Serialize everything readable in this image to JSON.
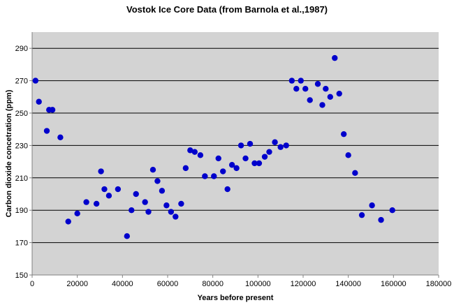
{
  "chart_data": {
    "type": "scatter",
    "title": "Vostok Ice Core Data (from Barnola et al.,1987)",
    "xlabel": "Years before present",
    "ylabel": "Carbon dioxide concetration (ppm)",
    "xlim": [
      0,
      180000
    ],
    "ylim": [
      150,
      300
    ],
    "xticks": [
      0,
      20000,
      40000,
      60000,
      80000,
      100000,
      120000,
      140000,
      160000,
      180000
    ],
    "yticks": [
      150,
      170,
      190,
      210,
      230,
      250,
      270,
      290
    ],
    "grid": "horizontal",
    "legend": "none",
    "plot_background": "#d3d3d3",
    "marker_color": "#0000cc",
    "gridline_color": "#000000",
    "series": [
      {
        "points": [
          [
            1500,
            270
          ],
          [
            3000,
            257
          ],
          [
            6500,
            239
          ],
          [
            7500,
            252
          ],
          [
            9000,
            252
          ],
          [
            12500,
            235
          ],
          [
            16000,
            183
          ],
          [
            20000,
            188
          ],
          [
            24000,
            195
          ],
          [
            28500,
            194
          ],
          [
            30500,
            214
          ],
          [
            32000,
            203
          ],
          [
            34000,
            199
          ],
          [
            38000,
            203
          ],
          [
            42000,
            174
          ],
          [
            44000,
            190
          ],
          [
            46000,
            200
          ],
          [
            50000,
            195
          ],
          [
            51500,
            189
          ],
          [
            53500,
            215
          ],
          [
            55500,
            208
          ],
          [
            57500,
            202
          ],
          [
            59500,
            193
          ],
          [
            61500,
            189
          ],
          [
            63500,
            186
          ],
          [
            66000,
            194
          ],
          [
            68000,
            216
          ],
          [
            70000,
            227
          ],
          [
            72000,
            226
          ],
          [
            74500,
            224
          ],
          [
            76500,
            211
          ],
          [
            80500,
            211
          ],
          [
            82500,
            222
          ],
          [
            84500,
            214
          ],
          [
            86500,
            203
          ],
          [
            88500,
            218
          ],
          [
            90500,
            216
          ],
          [
            92500,
            230
          ],
          [
            94500,
            222
          ],
          [
            96500,
            231
          ],
          [
            98500,
            219
          ],
          [
            100500,
            219
          ],
          [
            103000,
            223
          ],
          [
            105000,
            226
          ],
          [
            107500,
            232
          ],
          [
            110000,
            229
          ],
          [
            112500,
            230
          ],
          [
            115000,
            270
          ],
          [
            117000,
            265
          ],
          [
            119000,
            270
          ],
          [
            121000,
            265
          ],
          [
            123000,
            258
          ],
          [
            126500,
            268
          ],
          [
            128500,
            255
          ],
          [
            130000,
            265
          ],
          [
            132000,
            260
          ],
          [
            134000,
            284
          ],
          [
            136000,
            262
          ],
          [
            138000,
            237
          ],
          [
            140000,
            224
          ],
          [
            143000,
            213
          ],
          [
            146000,
            187
          ],
          [
            150500,
            193
          ],
          [
            154500,
            184
          ],
          [
            159500,
            190
          ]
        ]
      }
    ]
  }
}
